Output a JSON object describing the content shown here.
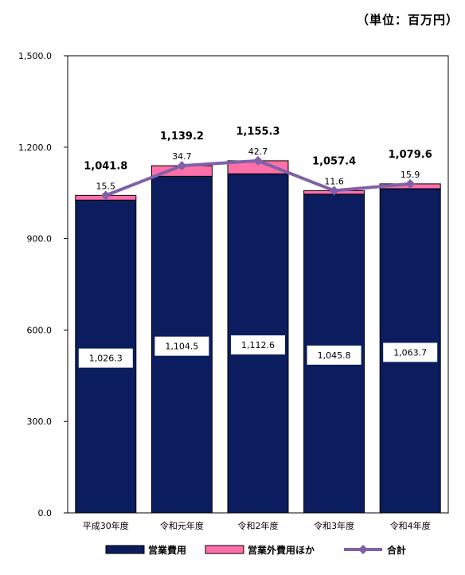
{
  "unit_label": "（単位：百万円）",
  "colors": {
    "operating": "#0b1d5e",
    "non_operating": "#ff6fa8",
    "total_line": "#8060a8"
  },
  "chart_data": {
    "type": "bar",
    "stacked": true,
    "categories": [
      "平成30年度",
      "令和元年度",
      "令和2年度",
      "令和3年度",
      "令和4年度"
    ],
    "series": [
      {
        "name": "営業費用",
        "values": [
          1026.3,
          1104.5,
          1112.6,
          1045.8,
          1063.7
        ],
        "labels": [
          "1,026.3",
          "1,104.5",
          "1,112.6",
          "1,045.8",
          "1,063.7"
        ]
      },
      {
        "name": "営業外費用ほか",
        "values": [
          15.5,
          34.7,
          42.7,
          11.6,
          15.9
        ],
        "labels": [
          "15.5",
          "34.7",
          "42.7",
          "11.6",
          "15.9"
        ]
      },
      {
        "name": "合計",
        "type": "line",
        "values": [
          1041.8,
          1139.2,
          1155.3,
          1057.4,
          1079.6
        ],
        "labels": [
          "1,041.8",
          "1,139.2",
          "1,155.3",
          "1,057.4",
          "1,079.6"
        ]
      }
    ],
    "yticks": [
      "1,500.0",
      "1,200.0",
      "900.0",
      "600.0",
      "300.0",
      "0.0"
    ],
    "ylim": [
      0,
      1500
    ],
    "legend_position": "bottom",
    "grid": false
  }
}
